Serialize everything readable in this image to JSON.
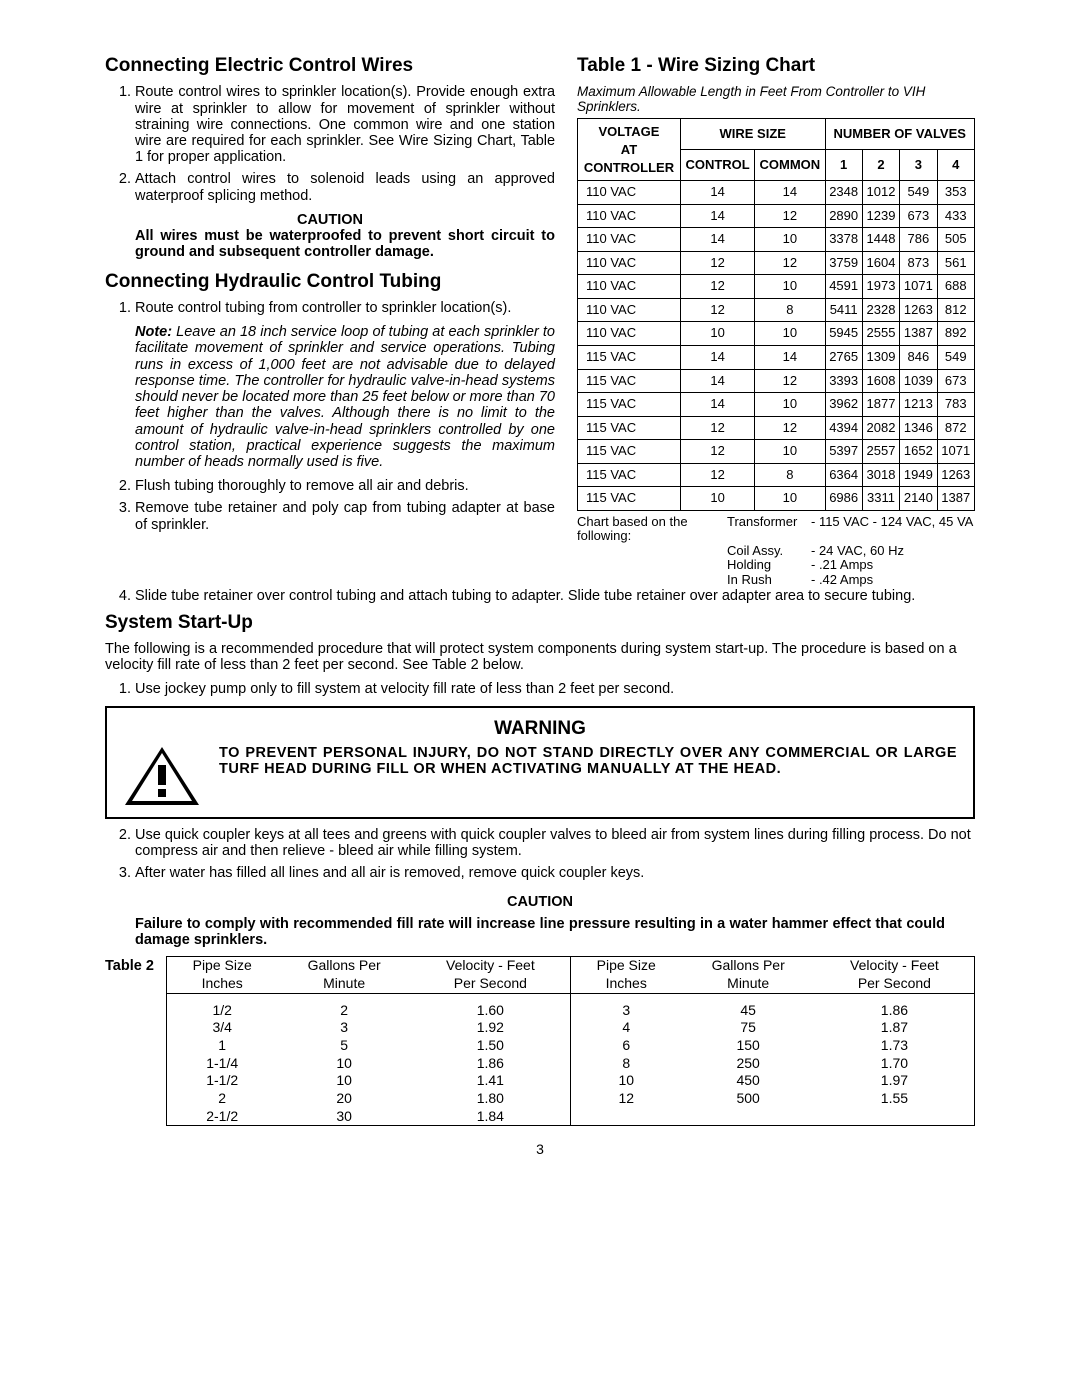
{
  "left": {
    "h1": "Connecting Electric Control Wires",
    "li1": "Route control wires to sprinkler location(s). Provide enough extra wire at sprinkler to allow for movement of sprinkler without straining wire connections. One common wire and one station wire are required for each sprinkler. See Wire Sizing Chart, Table 1 for proper application.",
    "li2": "Attach control wires to solenoid leads using an approved waterproof splicing method.",
    "caution_label": "CAUTION",
    "caution_text": "All wires must be waterproofed to prevent short circuit to ground and subsequent controller damage.",
    "h2": "Connecting Hydraulic Control Tubing",
    "li3": "Route control tubing from controller to sprinkler location(s).",
    "note_label": "Note:",
    "note_text": " Leave an 18 inch service loop of tubing at each sprinkler to facilitate movement of sprinkler and service operations. Tubing runs in excess of 1,000 feet are not advisable due to delayed response time. The controller for hydraulic valve-in-head systems should never be located more than 25 feet below or more than 70 feet higher than the valves. Although there is no limit to the amount of hydraulic valve-in-head sprinklers controlled by one control station, practical experience suggests the maximum number of heads normally used is five.",
    "li4": "Flush tubing thoroughly to remove all air and debris.",
    "li5": "Remove tube retainer and poly cap from tubing adapter at base of sprinkler."
  },
  "right": {
    "h1": "Table 1 -  Wire Sizing Chart",
    "caption": "Maximum Allowable Length in Feet From Controller to VIH Sprinklers.",
    "hdr_voltage1": "VOLTAGE",
    "hdr_voltage2": "AT",
    "hdr_voltage3": "CONTROLLER",
    "hdr_ws": "WIRE SIZE",
    "hdr_nv": "NUMBER OF VALVES",
    "hdr_control": "CONTROL",
    "hdr_common": "COMMON",
    "hdr_v1": "1",
    "hdr_v2": "2",
    "hdr_v3": "3",
    "hdr_v4": "4",
    "rows": [
      [
        "110 VAC",
        "14",
        "14",
        "2348",
        "1012",
        "549",
        "353"
      ],
      [
        "110 VAC",
        "14",
        "12",
        "2890",
        "1239",
        "673",
        "433"
      ],
      [
        "110 VAC",
        "14",
        "10",
        "3378",
        "1448",
        "786",
        "505"
      ],
      [
        "110 VAC",
        "12",
        "12",
        "3759",
        "1604",
        "873",
        "561"
      ],
      [
        "110 VAC",
        "12",
        "10",
        "4591",
        "1973",
        "1071",
        "688"
      ],
      [
        "110 VAC",
        "12",
        "8",
        "5411",
        "2328",
        "1263",
        "812"
      ],
      [
        "110 VAC",
        "10",
        "10",
        "5945",
        "2555",
        "1387",
        "892"
      ],
      [
        "115 VAC",
        "14",
        "14",
        "2765",
        "1309",
        "846",
        "549"
      ],
      [
        "115 VAC",
        "14",
        "12",
        "3393",
        "1608",
        "1039",
        "673"
      ],
      [
        "115 VAC",
        "14",
        "10",
        "3962",
        "1877",
        "1213",
        "783"
      ],
      [
        "115 VAC",
        "12",
        "12",
        "4394",
        "2082",
        "1346",
        "872"
      ],
      [
        "115 VAC",
        "12",
        "10",
        "5397",
        "2557",
        "1652",
        "1071"
      ],
      [
        "115 VAC",
        "12",
        "8",
        "6364",
        "3018",
        "1949",
        "1263"
      ],
      [
        "115 VAC",
        "10",
        "10",
        "6986",
        "3311",
        "2140",
        "1387"
      ]
    ],
    "foot_intro": "Chart based on the following:",
    "foot": [
      [
        "Transformer",
        "- 115 VAC - 124 VAC, 45 VA"
      ],
      [
        "Coil Assy.",
        "- 24 VAC, 60 Hz"
      ],
      [
        "Holding",
        "- .21 Amps"
      ],
      [
        "In Rush",
        "- .42 Amps"
      ]
    ]
  },
  "below": {
    "li6": "Slide tube retainer over control tubing and attach tubing to adapter. Slide tube retainer over adapter area to secure tubing.",
    "h3": "System Start-Up",
    "intro": "The following is a recommended procedure that will protect system components during system start-up. The procedure is based on a velocity fill rate of less than 2 feet per second. See Table 2 below.",
    "li7": "Use jockey pump only to fill system at velocity fill rate of less than 2 feet per second.",
    "warn_head": "WARNING",
    "warn_text": "TO PREVENT PERSONAL INJURY, DO NOT STAND DIRECTLY OVER ANY COMMERCIAL OR LARGE TURF HEAD DURING FILL OR WHEN ACTIVATING MANUALLY AT THE HEAD.",
    "li8": "Use quick coupler keys at all tees and greens with quick coupler valves to bleed air from system lines during filling process. Do not compress air and then relieve - bleed air while filling system.",
    "li9": "After water has filled all lines and all air is removed, remove quick coupler keys.",
    "caution_label": "CAUTION",
    "caution_text": "Failure to comply with recommended fill rate will increase line pressure resulting in a water hammer effect that could damage sprinklers."
  },
  "t2": {
    "label": "Table 2",
    "h_ps": "Pipe Size",
    "h_ps2": "Inches",
    "h_gpm": "Gallons Per",
    "h_gpm2": "Minute",
    "h_vel": "Velocity - Feet",
    "h_vel2": "Per Second",
    "left_rows": [
      [
        "1/2",
        "2",
        "1.60"
      ],
      [
        "3/4",
        "3",
        "1.92"
      ],
      [
        "1",
        "5",
        "1.50"
      ],
      [
        "1-1/4",
        "10",
        "1.86"
      ],
      [
        "1-1/2",
        "10",
        "1.41"
      ],
      [
        "2",
        "20",
        "1.80"
      ],
      [
        "2-1/2",
        "30",
        "1.84"
      ]
    ],
    "right_rows": [
      [
        "3",
        "45",
        "1.86"
      ],
      [
        "4",
        "75",
        "1.87"
      ],
      [
        "6",
        "150",
        "1.73"
      ],
      [
        "8",
        "250",
        "1.70"
      ],
      [
        "10",
        "450",
        "1.97"
      ],
      [
        "12",
        "500",
        "1.55"
      ]
    ]
  },
  "pagenum": "3"
}
